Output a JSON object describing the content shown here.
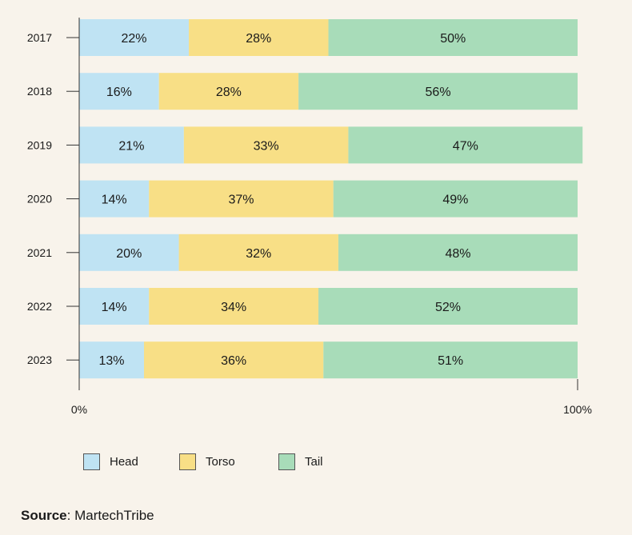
{
  "chart_data": {
    "type": "bar",
    "orientation": "horizontal",
    "stacked": true,
    "categories": [
      "2017",
      "2018",
      "2019",
      "2020",
      "2021",
      "2022",
      "2023"
    ],
    "series": [
      {
        "name": "Head",
        "color": "#bfe3f3",
        "values": [
          22,
          16,
          21,
          14,
          20,
          14,
          13
        ],
        "labels": [
          "22%",
          "16%",
          "21%",
          "14%",
          "20%",
          "14%",
          "13%"
        ]
      },
      {
        "name": "Torso",
        "color": "#f8df86",
        "values": [
          28,
          28,
          33,
          37,
          32,
          34,
          36
        ],
        "labels": [
          "28%",
          "28%",
          "33%",
          "37%",
          "32%",
          "34%",
          "36%"
        ]
      },
      {
        "name": "Tail",
        "color": "#a8dcb9",
        "values": [
          50,
          56,
          47,
          49,
          48,
          52,
          51
        ],
        "labels": [
          "50%",
          "56%",
          "47%",
          "49%",
          "48%",
          "52%",
          "51%"
        ]
      }
    ],
    "xlim": [
      0,
      100
    ],
    "x_ticks": [
      "0%",
      "100%"
    ],
    "grid": false,
    "legend_position": "bottom"
  },
  "source": {
    "label": "Source",
    "text": ": MartechTribe"
  }
}
